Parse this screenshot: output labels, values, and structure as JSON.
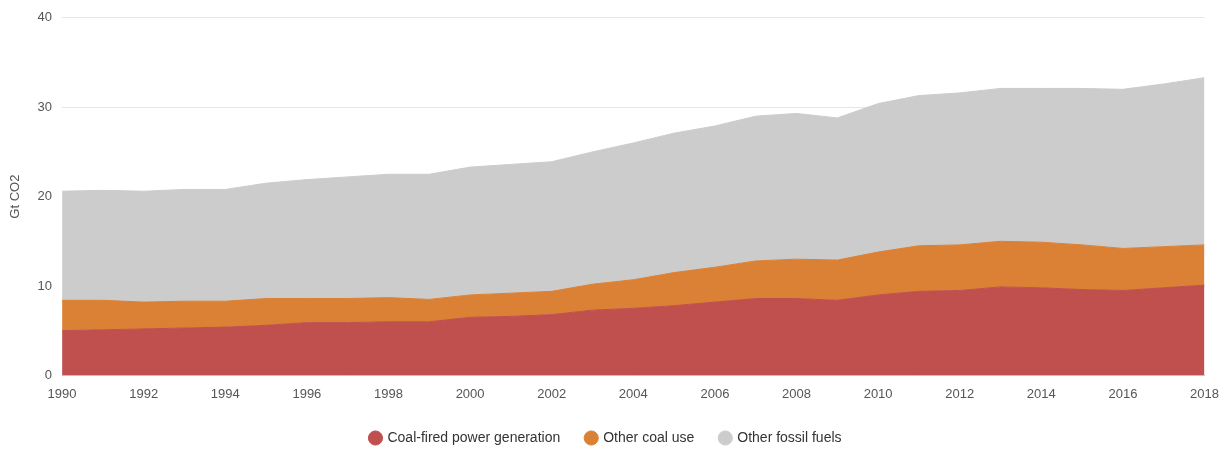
{
  "chart_data": {
    "type": "area",
    "stacked": true,
    "grid": true,
    "legend": "bottom",
    "y_label": "Gt CO2",
    "x": [
      1990,
      1991,
      1992,
      1993,
      1994,
      1995,
      1996,
      1997,
      1998,
      1999,
      2000,
      2001,
      2002,
      2003,
      2004,
      2005,
      2006,
      2007,
      2008,
      2009,
      2010,
      2011,
      2012,
      2013,
      2014,
      2015,
      2016,
      2017,
      2018
    ],
    "xlim": [
      1990,
      2018
    ],
    "xticks": [
      1990,
      1992,
      1994,
      1996,
      1998,
      2000,
      2002,
      2004,
      2006,
      2008,
      2010,
      2012,
      2014,
      2016,
      2018
    ],
    "ylim": [
      0,
      40
    ],
    "yticks": [
      0,
      10,
      20,
      30,
      40
    ],
    "series": [
      {
        "name": "Coal-fired power generation",
        "color": "#c0504d",
        "values": [
          5.0,
          5.1,
          5.2,
          5.3,
          5.4,
          5.6,
          5.9,
          5.9,
          6.0,
          6.0,
          6.5,
          6.6,
          6.8,
          7.3,
          7.5,
          7.8,
          8.2,
          8.6,
          8.6,
          8.4,
          9.0,
          9.4,
          9.5,
          9.9,
          9.8,
          9.6,
          9.5,
          9.8,
          10.1
        ]
      },
      {
        "name": "Other coal use",
        "color": "#db8136",
        "values": [
          3.4,
          3.3,
          3.0,
          3.0,
          2.9,
          3.0,
          2.7,
          2.7,
          2.7,
          2.5,
          2.5,
          2.6,
          2.6,
          2.9,
          3.2,
          3.7,
          3.9,
          4.2,
          4.4,
          4.5,
          4.8,
          5.1,
          5.1,
          5.1,
          5.1,
          5.0,
          4.7,
          4.6,
          4.5
        ]
      },
      {
        "name": "Other fossil fuels",
        "color": "#cccccc",
        "values": [
          12.2,
          12.3,
          12.4,
          12.5,
          12.5,
          12.9,
          13.3,
          13.6,
          13.8,
          14.0,
          14.3,
          14.4,
          14.5,
          14.8,
          15.3,
          15.6,
          15.8,
          16.2,
          16.3,
          15.9,
          16.6,
          16.8,
          17.0,
          17.1,
          17.2,
          17.5,
          17.8,
          18.2,
          18.7
        ]
      }
    ]
  }
}
